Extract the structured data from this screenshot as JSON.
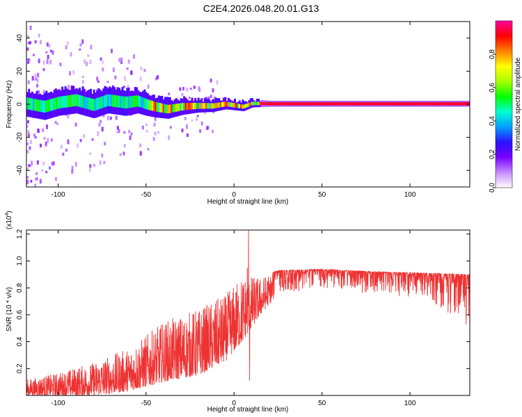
{
  "title": "C2E4.2026.048.20.01.G13",
  "chart_data": [
    {
      "type": "heatmap",
      "name": "spectrogram",
      "xlabel": "Height of straight line (km)",
      "ylabel": "Frequency (Hz)",
      "xlim": [
        -118,
        134
      ],
      "ylim": [
        -50,
        50
      ],
      "x_ticks": [
        -100,
        -50,
        0,
        50,
        100
      ],
      "y_ticks": [
        -40,
        -20,
        0,
        20,
        40
      ],
      "colorbar": {
        "label": "Normalized spectral amplitude",
        "range": [
          0.0,
          1.0
        ],
        "ticks": [
          0.0,
          0.2,
          0.4,
          0.6,
          0.8
        ],
        "tick_labels": [
          "0.0",
          "0.2",
          "0.4",
          "0.6",
          "0.8"
        ],
        "colors": [
          "#ffffff",
          "#c58cff",
          "#7a00ff",
          "#2a12ff",
          "#00a0ff",
          "#00ffd0",
          "#00ff00",
          "#a8ff00",
          "#ffff00",
          "#ff8000",
          "#ff0000",
          "#ff00a0"
        ]
      },
      "centerline": [
        {
          "x": -118,
          "y": 0.5
        },
        {
          "x": -108,
          "y": -1.5
        },
        {
          "x": -100,
          "y": 1.0
        },
        {
          "x": -90,
          "y": 2.5
        },
        {
          "x": -80,
          "y": -0.5
        },
        {
          "x": -72,
          "y": 2.5
        },
        {
          "x": -62,
          "y": 1.0
        },
        {
          "x": -55,
          "y": 2.0
        },
        {
          "x": -50,
          "y": 0.0
        },
        {
          "x": -45,
          "y": -1.5
        },
        {
          "x": -38,
          "y": -3.0
        },
        {
          "x": -30,
          "y": -1.5
        },
        {
          "x": -22,
          "y": -1.0
        },
        {
          "x": -12,
          "y": -1.0
        },
        {
          "x": -5,
          "y": 0.2
        },
        {
          "x": 5,
          "y": -1.5
        },
        {
          "x": 10,
          "y": 0.5
        },
        {
          "x": 20,
          "y": 0.3
        },
        {
          "x": 134,
          "y": 0.3
        }
      ],
      "band_half_width": [
        {
          "x": -118,
          "w": 8
        },
        {
          "x": -60,
          "w": 8
        },
        {
          "x": -20,
          "w": 4
        },
        {
          "x": 0,
          "w": 3
        },
        {
          "x": 20,
          "w": 1.8
        },
        {
          "x": 134,
          "w": 1.8
        }
      ]
    },
    {
      "type": "line",
      "name": "snr",
      "xlabel": "Height of straight line (km)",
      "ylabel": "SNR (10 * v/v)",
      "y_multiplier": "(x10",
      "y_multiplier_exp": "4",
      "y_multiplier_close": ")",
      "xlim": [
        -118,
        134
      ],
      "ylim": [
        0,
        12300
      ],
      "x_ticks": [
        -100,
        -50,
        0,
        50,
        100
      ],
      "y_ticks": [
        2000,
        4000,
        6000,
        8000,
        10000,
        12000
      ],
      "y_tick_labels": [
        "0.2",
        "0.4",
        "0.6",
        "0.8",
        "1.0",
        "1.2"
      ],
      "color": "#ee3333",
      "envelope": [
        {
          "x": -118,
          "low": 0,
          "high": 1200
        },
        {
          "x": -100,
          "low": 0,
          "high": 1700
        },
        {
          "x": -80,
          "low": 0,
          "high": 2500
        },
        {
          "x": -60,
          "low": 300,
          "high": 3500
        },
        {
          "x": -40,
          "low": 1000,
          "high": 5500
        },
        {
          "x": -20,
          "low": 1500,
          "high": 6500
        },
        {
          "x": -5,
          "low": 2500,
          "high": 7500
        },
        {
          "x": 5,
          "low": 4000,
          "high": 9000
        },
        {
          "x": 15,
          "low": 6000,
          "high": 8800
        },
        {
          "x": 25,
          "low": 7500,
          "high": 9300
        },
        {
          "x": 50,
          "low": 8000,
          "high": 9400
        },
        {
          "x": 80,
          "low": 7500,
          "high": 9200
        },
        {
          "x": 110,
          "low": 7200,
          "high": 9100
        },
        {
          "x": 134,
          "low": 5000,
          "high": 9000
        }
      ],
      "spikes": [
        {
          "x": 8.3,
          "y": 12300
        },
        {
          "x": 8.8,
          "y": 1100
        },
        {
          "x": 7.5,
          "y": 9500
        }
      ]
    }
  ]
}
